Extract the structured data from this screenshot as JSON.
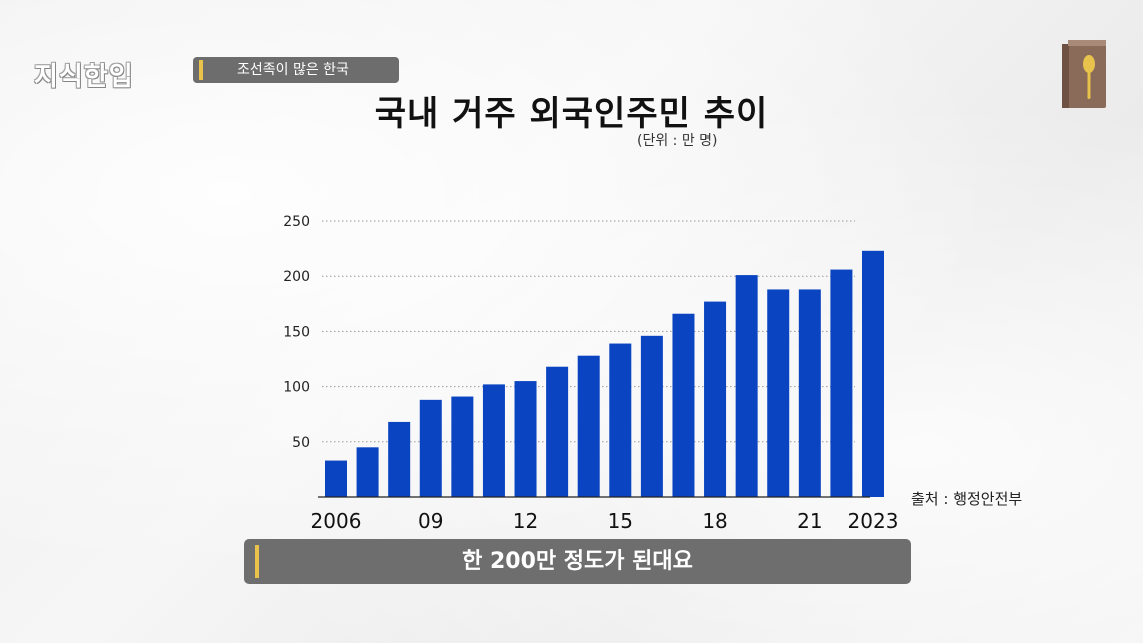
{
  "header": {
    "logo_text": "지식한입",
    "topic_label": "조선족이 많은 한국"
  },
  "icons": {
    "top_right": "book-spoon-icon"
  },
  "caption": {
    "text": "한 200만 정도가 된대요"
  },
  "source_note": "출처 : 행정안전부",
  "colors": {
    "bar": "#0a44c1",
    "accent": "#e8c24a",
    "pill": "#6d6d6d"
  },
  "chart_data": {
    "type": "bar",
    "title": "국내 거주 외국인주민 추이",
    "unit": "(단위 : 만 명)",
    "categories": [
      "2006",
      "2007",
      "2008",
      "2009",
      "2010",
      "2011",
      "2012",
      "2013",
      "2014",
      "2015",
      "2016",
      "2017",
      "2018",
      "2019",
      "2020",
      "2021",
      "2022",
      "2023"
    ],
    "tick_labels": [
      {
        "index": 0,
        "label": "2006"
      },
      {
        "index": 3,
        "label": "09"
      },
      {
        "index": 6,
        "label": "12"
      },
      {
        "index": 9,
        "label": "15"
      },
      {
        "index": 12,
        "label": "18"
      },
      {
        "index": 15,
        "label": "21"
      },
      {
        "index": 17,
        "label": "2023"
      }
    ],
    "values": [
      33,
      45,
      68,
      88,
      91,
      102,
      105,
      118,
      128,
      139,
      146,
      166,
      177,
      201,
      188,
      188,
      206,
      223
    ],
    "yticks": [
      50,
      100,
      150,
      200,
      250
    ],
    "ylim": [
      0,
      250
    ],
    "grid": "horizontal-dotted",
    "xlabel": "",
    "ylabel": ""
  }
}
